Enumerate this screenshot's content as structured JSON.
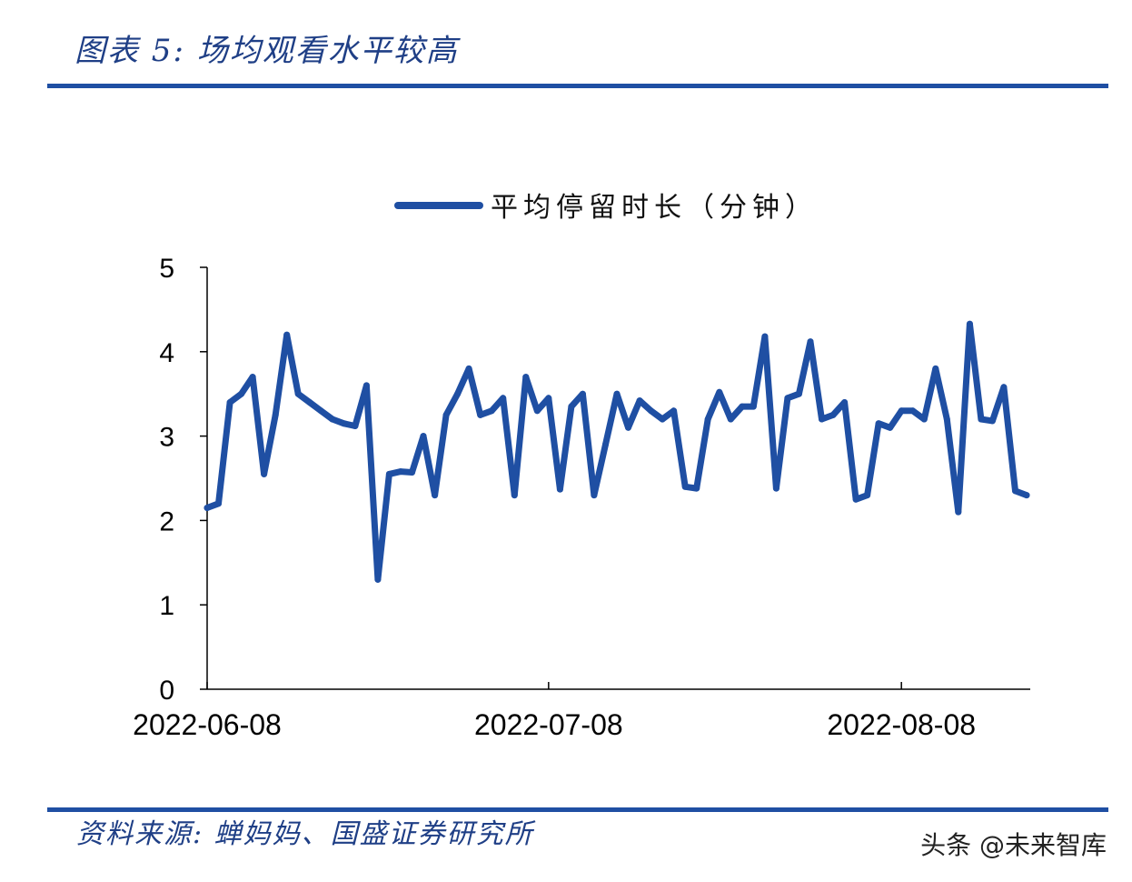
{
  "figure": {
    "title": "图表 5:  场均观看水平较高",
    "source": "资料来源:  蝉妈妈、国盛证券研究所",
    "watermark": "头条 @未来智库"
  },
  "colors": {
    "line": "#1f4fa3",
    "rule": "#1f4fa3",
    "title": "#1f3f86"
  },
  "chart_data": {
    "type": "line",
    "title": "",
    "xlabel": "",
    "ylabel": "",
    "ylim": [
      0,
      5
    ],
    "yticks": [
      0,
      1,
      2,
      3,
      4,
      5
    ],
    "xtick_labels": [
      "2022-06-08",
      "2022-07-08",
      "2022-08-08"
    ],
    "xtick_index": [
      0,
      30,
      61
    ],
    "legend_position": "top-center",
    "series": [
      {
        "name": "平均停留时长（分钟）",
        "x_start": "2022-06-08",
        "values": [
          2.15,
          2.2,
          3.4,
          3.5,
          3.7,
          2.55,
          3.25,
          4.2,
          3.5,
          3.4,
          3.3,
          3.2,
          3.15,
          3.12,
          3.6,
          1.3,
          2.55,
          2.58,
          2.57,
          3.0,
          2.3,
          3.25,
          3.5,
          3.8,
          3.25,
          3.3,
          3.45,
          2.3,
          3.7,
          3.3,
          3.45,
          2.37,
          3.35,
          3.5,
          2.3,
          2.9,
          3.5,
          3.1,
          3.42,
          3.3,
          3.2,
          3.3,
          2.4,
          2.38,
          3.2,
          3.52,
          3.2,
          3.35,
          3.35,
          4.18,
          2.38,
          3.45,
          3.5,
          4.12,
          3.2,
          3.25,
          3.4,
          2.25,
          2.3,
          3.15,
          3.1,
          3.3,
          3.3,
          3.2,
          3.8,
          3.2,
          2.1,
          4.33,
          3.2,
          3.18,
          3.58,
          2.35,
          2.3
        ]
      }
    ]
  }
}
